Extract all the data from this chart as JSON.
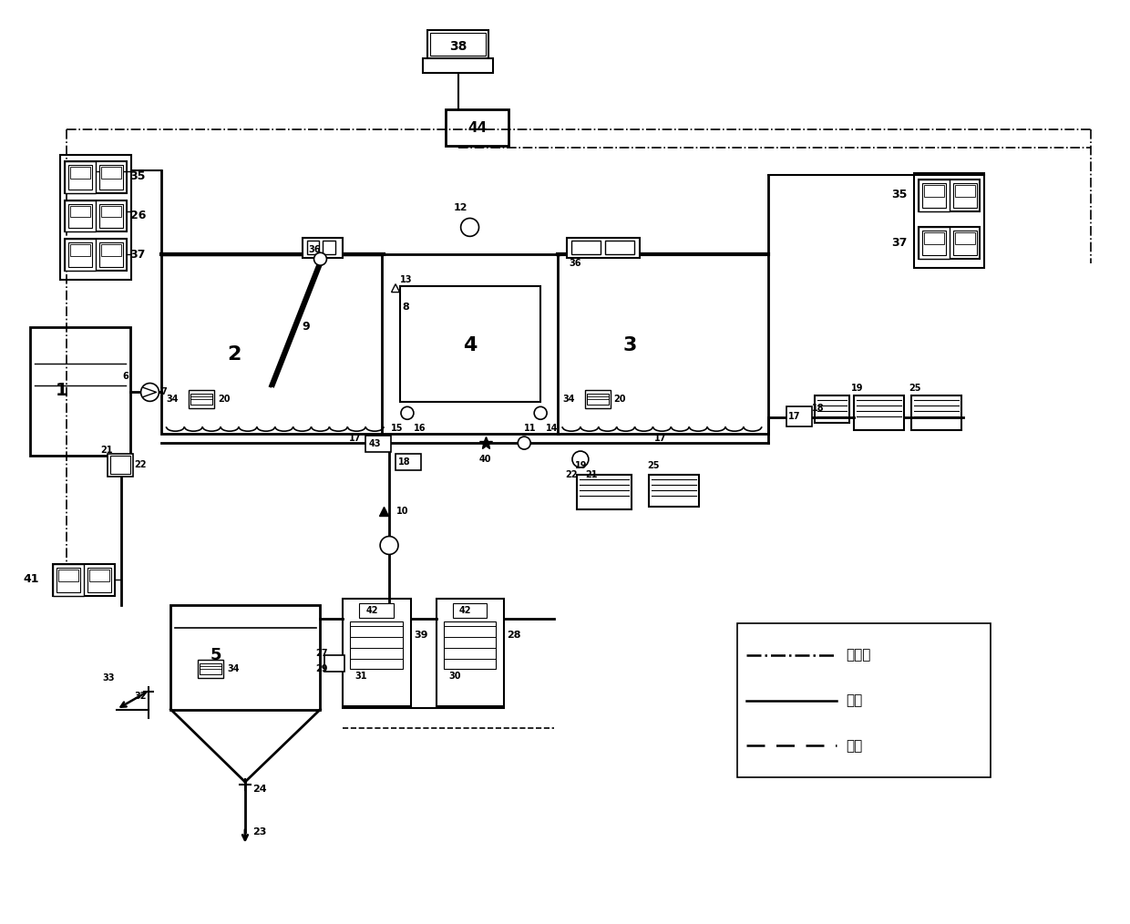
{
  "bg": "#ffffff",
  "lc": "#000000",
  "fw": 12.4,
  "fh": 10.14,
  "legend": {
    "dashdot_label": "通讯线",
    "solid_label": "液线",
    "dashed_label": "气线"
  }
}
